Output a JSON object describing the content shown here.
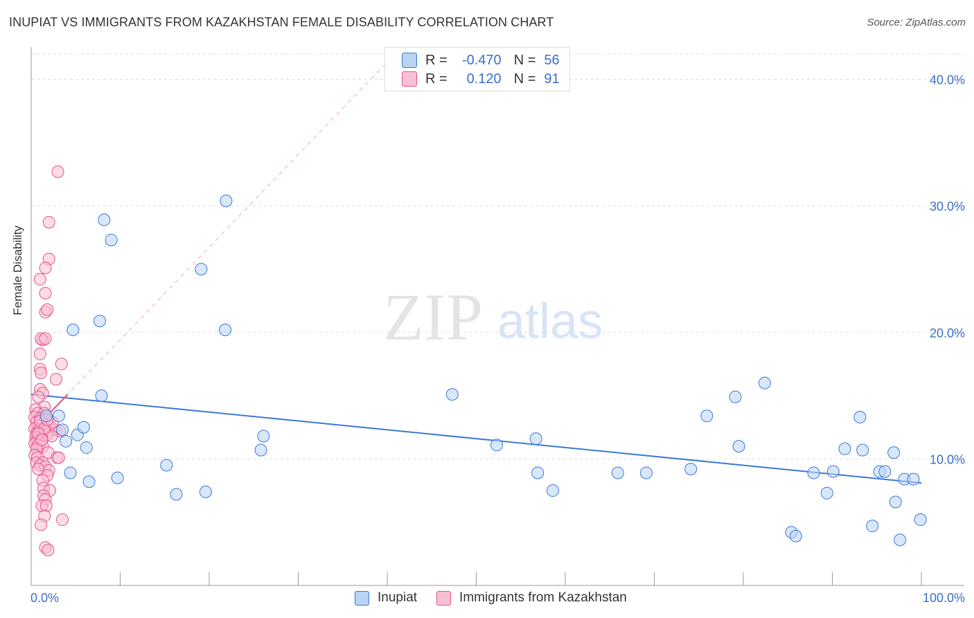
{
  "title": "INUPIAT VS IMMIGRANTS FROM KAZAKHSTAN FEMALE DISABILITY CORRELATION CHART",
  "source": "Source: ZipAtlas.com",
  "watermark": {
    "zip": "ZIP",
    "atlas": "atlas"
  },
  "colors": {
    "blue": "#3a78d4",
    "blue_fill": "#b9d3f5",
    "pink": "#e8508a",
    "pink_fill": "#f8c0d4",
    "grid": "#dddddd",
    "tick_text": "#3a6fc7"
  },
  "legend": {
    "rows": [
      {
        "r_label": "R =",
        "r_value": "-0.470",
        "n_label": "N =",
        "n_value": "56",
        "series": "blue"
      },
      {
        "r_label": "R =",
        "r_value": "0.120",
        "n_label": "N =",
        "n_value": "91",
        "series": "pink"
      }
    ]
  },
  "bottom_legend": [
    "Inupiat",
    "Immigrants from Kazakhstan"
  ],
  "chart_data": {
    "type": "scatter",
    "xlabel": "",
    "ylabel": "Female Disability",
    "xlim": [
      0,
      100
    ],
    "ylim": [
      0,
      42
    ],
    "x_tick_labels": [
      "0.0%",
      "100.0%"
    ],
    "y_ticks": [
      10,
      20,
      30,
      40
    ],
    "y_tick_labels": [
      "10.0%",
      "20.0%",
      "30.0%",
      "40.0%"
    ],
    "series": [
      {
        "name": "Inupiat",
        "color": "blue",
        "trend": {
          "x": [
            0,
            100
          ],
          "y": [
            15.1,
            8.1
          ]
        },
        "points": [
          [
            1.7,
            13.4
          ],
          [
            3.1,
            13.4
          ],
          [
            3.5,
            12.3
          ],
          [
            3.9,
            11.4
          ],
          [
            4.4,
            8.9
          ],
          [
            4.7,
            20.2
          ],
          [
            5.2,
            11.9
          ],
          [
            5.9,
            12.5
          ],
          [
            6.2,
            10.9
          ],
          [
            6.5,
            8.2
          ],
          [
            7.7,
            20.9
          ],
          [
            7.9,
            15.0
          ],
          [
            8.2,
            28.9
          ],
          [
            9.0,
            27.3
          ],
          [
            9.7,
            8.5
          ],
          [
            15.2,
            9.5
          ],
          [
            16.3,
            7.2
          ],
          [
            19.1,
            25.0
          ],
          [
            19.6,
            7.4
          ],
          [
            21.8,
            20.2
          ],
          [
            21.9,
            30.4
          ],
          [
            25.8,
            10.7
          ],
          [
            26.1,
            11.8
          ],
          [
            47.3,
            15.1
          ],
          [
            52.3,
            11.1
          ],
          [
            56.7,
            11.6
          ],
          [
            56.9,
            8.9
          ],
          [
            58.6,
            7.5
          ],
          [
            65.9,
            8.9
          ],
          [
            69.1,
            8.9
          ],
          [
            74.1,
            9.2
          ],
          [
            75.9,
            13.4
          ],
          [
            79.1,
            14.9
          ],
          [
            79.5,
            11.0
          ],
          [
            82.4,
            16.0
          ],
          [
            85.4,
            4.2
          ],
          [
            85.9,
            3.9
          ],
          [
            87.9,
            8.9
          ],
          [
            89.4,
            7.3
          ],
          [
            90.1,
            9.0
          ],
          [
            91.4,
            10.8
          ],
          [
            93.1,
            13.3
          ],
          [
            93.4,
            10.7
          ],
          [
            94.5,
            4.7
          ],
          [
            95.3,
            9.0
          ],
          [
            95.9,
            9.0
          ],
          [
            96.9,
            10.5
          ],
          [
            97.1,
            6.6
          ],
          [
            97.6,
            3.6
          ],
          [
            98.1,
            8.4
          ],
          [
            99.1,
            8.4
          ],
          [
            99.9,
            5.2
          ]
        ]
      },
      {
        "name": "Immigrants from Kazakhstan",
        "color": "pink",
        "trend": {
          "x": [
            0,
            4.1
          ],
          "y": [
            12.1,
            15.1
          ]
        },
        "points": [
          [
            3.0,
            32.7
          ],
          [
            2.0,
            28.7
          ],
          [
            2.0,
            25.8
          ],
          [
            1.6,
            25.1
          ],
          [
            1.0,
            24.2
          ],
          [
            1.6,
            23.1
          ],
          [
            1.6,
            21.6
          ],
          [
            1.8,
            21.8
          ],
          [
            1.3,
            19.4
          ],
          [
            1.1,
            19.5
          ],
          [
            1.6,
            19.5
          ],
          [
            1.0,
            18.3
          ],
          [
            3.4,
            17.5
          ],
          [
            1.0,
            17.1
          ],
          [
            1.1,
            16.8
          ],
          [
            2.8,
            16.3
          ],
          [
            1.0,
            15.5
          ],
          [
            1.3,
            15.2
          ],
          [
            0.8,
            14.9
          ],
          [
            1.5,
            14.1
          ],
          [
            0.5,
            13.9
          ],
          [
            0.7,
            13.6
          ],
          [
            1.5,
            13.6
          ],
          [
            0.4,
            13.3
          ],
          [
            1.0,
            13.2
          ],
          [
            0.6,
            12.9
          ],
          [
            1.3,
            12.8
          ],
          [
            0.8,
            12.6
          ],
          [
            2.1,
            12.6
          ],
          [
            0.4,
            12.4
          ],
          [
            0.9,
            12.3
          ],
          [
            1.7,
            12.2
          ],
          [
            2.7,
            12.3
          ],
          [
            3.2,
            12.2
          ],
          [
            0.6,
            12.0
          ],
          [
            1.1,
            11.9
          ],
          [
            1.8,
            11.9
          ],
          [
            2.3,
            11.8
          ],
          [
            0.5,
            11.7
          ],
          [
            1.2,
            11.6
          ],
          [
            0.6,
            11.4
          ],
          [
            1.0,
            11.3
          ],
          [
            0.4,
            11.2
          ],
          [
            0.8,
            11.1
          ],
          [
            1.3,
            11.0
          ],
          [
            0.6,
            10.8
          ],
          [
            1.9,
            10.5
          ],
          [
            0.4,
            10.3
          ],
          [
            0.7,
            10.1
          ],
          [
            2.9,
            10.1
          ],
          [
            3.1,
            10.1
          ],
          [
            0.6,
            9.7
          ],
          [
            1.3,
            9.7
          ],
          [
            1.0,
            9.5
          ],
          [
            1.6,
            9.4
          ],
          [
            0.8,
            9.2
          ],
          [
            2.0,
            9.1
          ],
          [
            1.8,
            8.7
          ],
          [
            1.3,
            8.3
          ],
          [
            1.4,
            7.7
          ],
          [
            2.1,
            7.5
          ],
          [
            1.4,
            7.1
          ],
          [
            1.6,
            6.8
          ],
          [
            1.2,
            6.3
          ],
          [
            1.7,
            6.3
          ],
          [
            1.5,
            5.5
          ],
          [
            3.5,
            5.2
          ],
          [
            1.1,
            4.8
          ],
          [
            1.6,
            3.0
          ],
          [
            1.9,
            2.8
          ],
          [
            1.0,
            13.0
          ],
          [
            1.5,
            12.4
          ],
          [
            0.8,
            12.0
          ],
          [
            1.2,
            11.5
          ],
          [
            2.4,
            12.9
          ],
          [
            1.8,
            13.1
          ]
        ]
      }
    ]
  }
}
